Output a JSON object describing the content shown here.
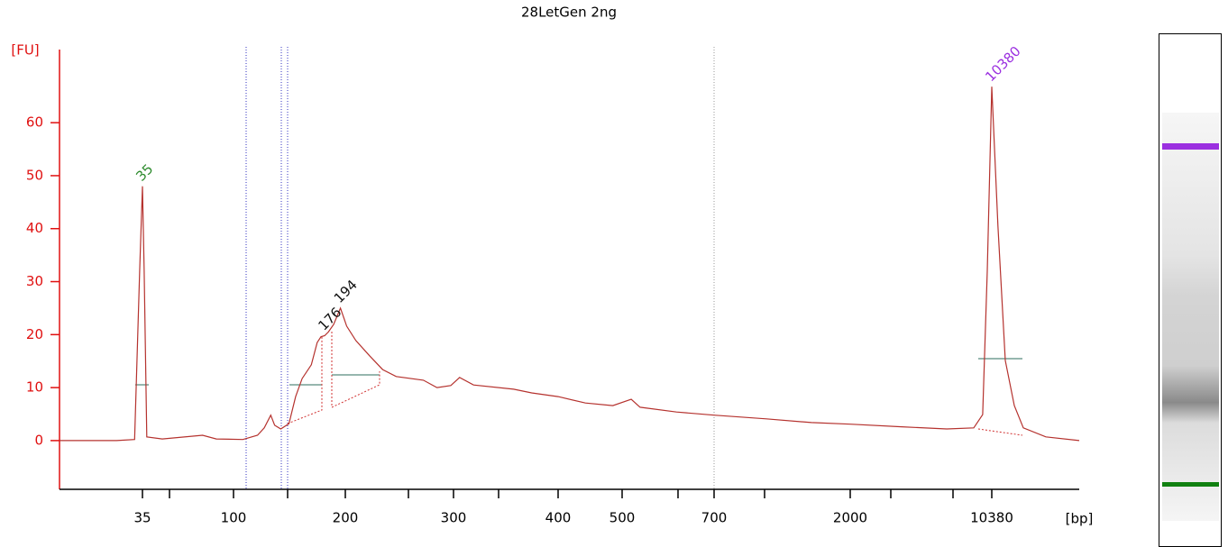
{
  "chart_data": {
    "type": "line",
    "title": "28LetGen 2ng",
    "y_label": "[FU]",
    "x_label": "[bp]",
    "color": "#b5322e",
    "axis_color": "#e01010",
    "x": [
      13.5,
      26,
      32,
      33.9,
      35,
      35.7,
      36.8,
      44,
      70,
      82,
      106,
      116,
      121,
      126,
      129,
      134,
      141,
      147,
      153,
      162,
      168,
      172,
      176,
      180,
      186,
      194,
      201,
      208,
      219,
      230,
      242,
      268,
      282,
      297,
      305,
      317,
      354,
      372,
      400,
      440,
      484,
      517,
      534,
      610,
      700,
      1048,
      1482,
      2000,
      3636,
      6150,
      8420,
      9340,
      9850,
      10380,
      11150,
      12150,
      13490,
      14980,
      19480,
      28700
    ],
    "values": [
      0,
      0,
      0.2,
      32,
      48,
      32,
      0.7,
      0.3,
      1.0,
      0.3,
      0.2,
      1.0,
      2.4,
      4.8,
      2.9,
      2.2,
      3.2,
      8.3,
      11.7,
      14.3,
      18.5,
      19.6,
      19.8,
      20.5,
      21.9,
      25,
      21.6,
      18.9,
      16,
      13.4,
      12.1,
      11.4,
      10,
      10.4,
      11.9,
      10.5,
      9.7,
      9.0,
      8.3,
      7.1,
      6.6,
      7.8,
      6.3,
      5.4,
      4.8,
      4.1,
      3.4,
      3.1,
      2.6,
      2.2,
      2.4,
      4.9,
      32,
      66.8,
      40.6,
      15.1,
      6.6,
      2.4,
      0.7,
      0
    ],
    "xlim": [
      13.5,
      28700
    ],
    "xticks": [
      35,
      100,
      200,
      300,
      400,
      500,
      700,
      2000,
      10380
    ],
    "ylim": [
      -9.2,
      73.8
    ],
    "yticks": [
      0,
      10,
      20,
      30,
      40,
      50,
      60
    ],
    "peak_labels": [
      {
        "x": 35,
        "y": 48,
        "color": "#2e8b2e"
      },
      {
        "x": 176,
        "y": 19.8,
        "color": "#111111"
      },
      {
        "x": 194,
        "y": 25,
        "color": "#111111"
      },
      {
        "x": 10380,
        "y": 66.8,
        "color": "#9b30e0"
      }
    ]
  }
}
